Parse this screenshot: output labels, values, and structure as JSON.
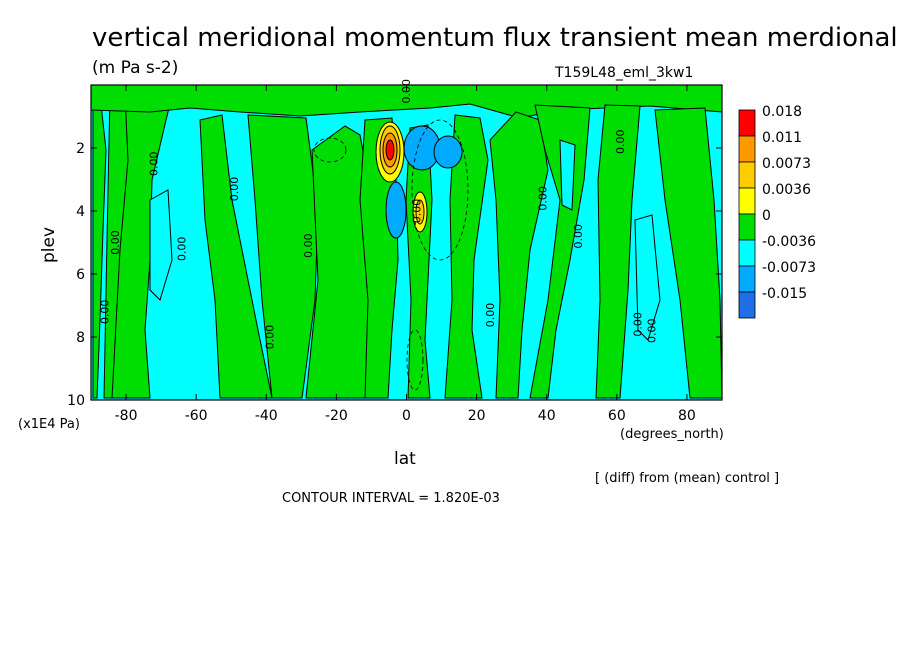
{
  "chart_data": {
    "type": "heatmap",
    "title": "vertical meridional momentum flux transient mean merdional",
    "units": "(m Pa s-2)",
    "run_label": "T159L48_eml_3kw1",
    "xlabel": "lat",
    "x_units": "(degrees_north)",
    "ylabel": "plev",
    "y_units": "(x1E4 Pa)",
    "xlim": [
      -90,
      90
    ],
    "ylim": [
      10,
      0
    ],
    "x_ticks": [
      {
        "value": -80,
        "label": "-80"
      },
      {
        "value": -60,
        "label": "-60"
      },
      {
        "value": -40,
        "label": "-40"
      },
      {
        "value": -20,
        "label": "-20"
      },
      {
        "value": 0,
        "label": "0"
      },
      {
        "value": 20,
        "label": "20"
      },
      {
        "value": 40,
        "label": "40"
      },
      {
        "value": 60,
        "label": "60"
      },
      {
        "value": 80,
        "label": "80"
      }
    ],
    "y_ticks": [
      {
        "value": 2,
        "label": "2"
      },
      {
        "value": 4,
        "label": "4"
      },
      {
        "value": 6,
        "label": "6"
      },
      {
        "value": 8,
        "label": "8"
      },
      {
        "value": 10,
        "label": "10"
      }
    ],
    "colorbar": [
      {
        "label": "0.018",
        "color": "#ff0000"
      },
      {
        "label": "0.011",
        "color": "#ff9900"
      },
      {
        "label": "0.0073",
        "color": "#ffcc00"
      },
      {
        "label": "0.0036",
        "color": "#ffff00"
      },
      {
        "label": "0",
        "color": "#00dd00"
      },
      {
        "label": "-0.0036",
        "color": "#00ffff"
      },
      {
        "label": "-0.0073",
        "color": "#00aaff"
      },
      {
        "label": "-0.015",
        "color": "#1f6fe8"
      }
    ],
    "field_summary": "Difference field: alternating green (0 to 0.0036) and cyan (-0.0036 to 0) bands over most latitudes; strong positive core (up to 0.018) near lat -5, plev ~2; negative core (to about -0.0073) near lat 3-15, plev ~2; secondary positive core near lat 5, plev ~4",
    "contour_labels": [
      "0.00"
    ],
    "annotation": "[ (diff) from (mean) control ]",
    "contour_interval": "CONTOUR INTERVAL = 1.820E-03"
  }
}
